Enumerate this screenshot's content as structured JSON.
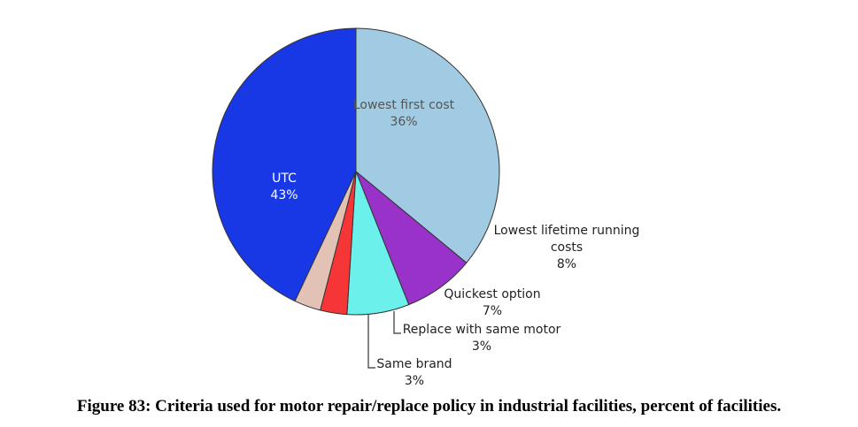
{
  "caption": "Figure 83: Criteria used for motor repair/replace policy in industrial facilities, percent of facilities.",
  "chart_data": {
    "type": "pie",
    "title": "",
    "direction": "clockwise",
    "start": "top",
    "slices": [
      {
        "label": "Lowest first cost",
        "value": 36,
        "value_label": "36%",
        "color": "#a0cbe2",
        "label_lines": [
          "Lowest first cost",
          "36%"
        ],
        "label_color": "#555555",
        "label_position": "inside"
      },
      {
        "label": "Lowest lifetime running costs",
        "value": 8,
        "value_label": "8%",
        "color": "#9832c8",
        "label_lines": [
          "Lowest lifetime running",
          "costs",
          "8%"
        ],
        "label_color": "#222222",
        "label_position": "outside"
      },
      {
        "label": "Quickest option",
        "value": 7,
        "value_label": "7%",
        "color": "#6cf0ec",
        "label_lines": [
          "Quickest option",
          "7%"
        ],
        "label_color": "#222222",
        "label_position": "outside"
      },
      {
        "label": "Replace with same motor",
        "value": 3,
        "value_label": "3%",
        "color": "#f63636",
        "label_lines": [
          "Replace with same motor",
          "3%"
        ],
        "label_color": "#222222",
        "label_position": "outside-leader"
      },
      {
        "label": "Same brand",
        "value": 3,
        "value_label": "3%",
        "color": "#e2c2b5",
        "label_lines": [
          "Same brand",
          "3%"
        ],
        "label_color": "#222222",
        "label_position": "outside-leader"
      },
      {
        "label": "UTC",
        "value": 43,
        "value_label": "43%",
        "color": "#1838e6",
        "label_lines": [
          "UTC",
          "43%"
        ],
        "label_color": "#ffffff",
        "label_position": "inside"
      }
    ]
  }
}
